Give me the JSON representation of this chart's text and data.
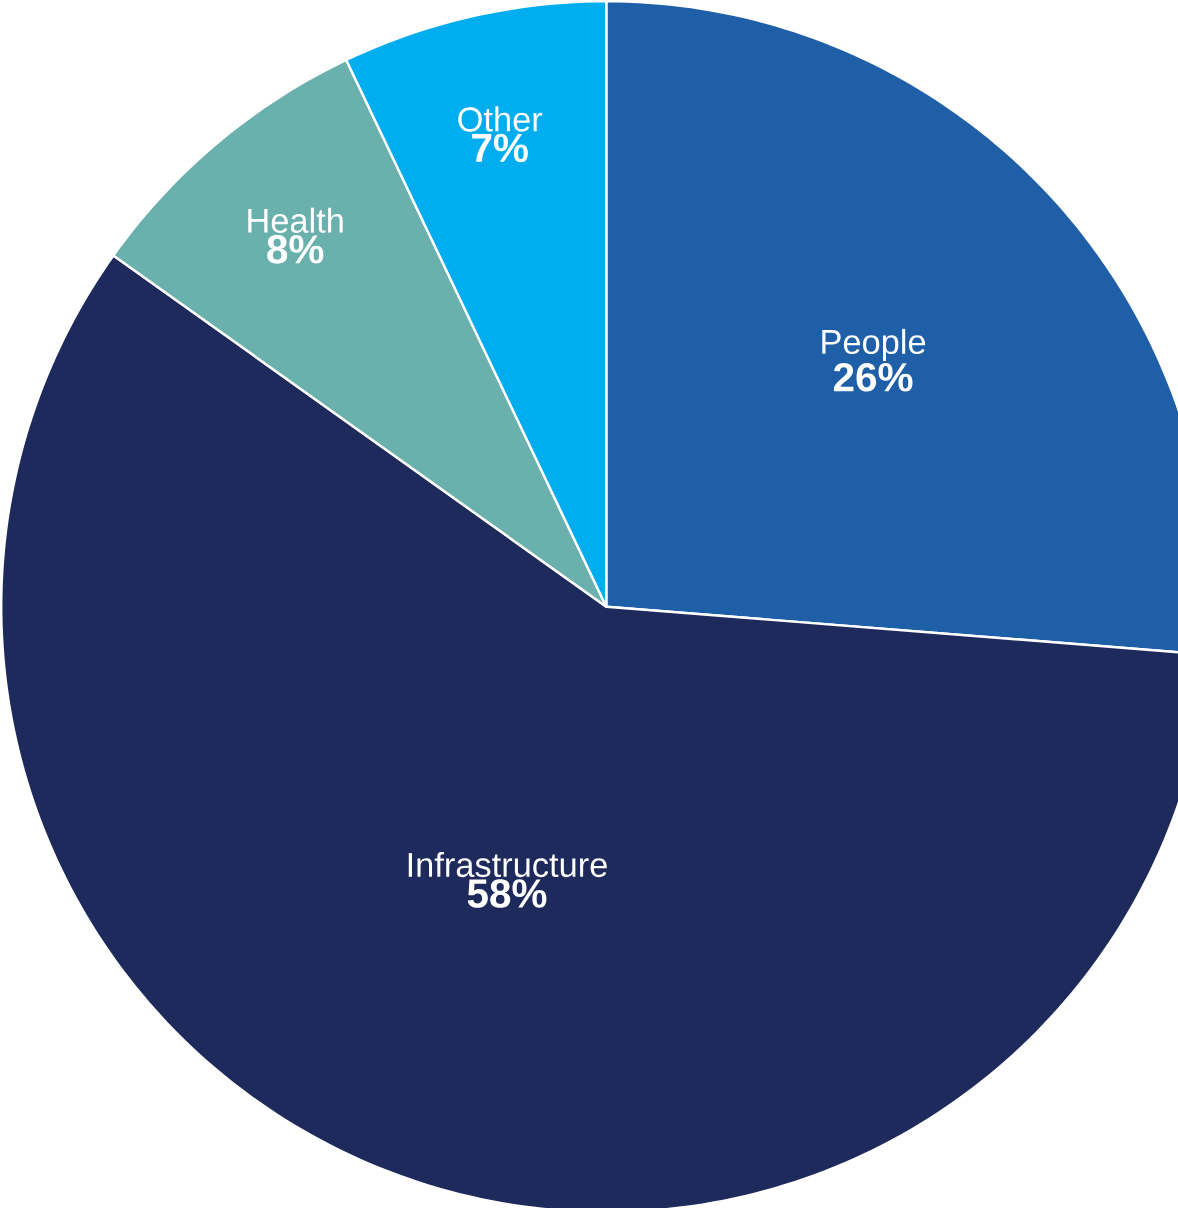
{
  "chart_data": {
    "type": "pie",
    "categories": [
      "People",
      "Infrastructure",
      "Health",
      "Other"
    ],
    "values": [
      26,
      58,
      8,
      7
    ],
    "value_labels": [
      "26%",
      "58%",
      "8%",
      "7%"
    ],
    "colors": [
      "#1f5fa8",
      "#1f2a5c",
      "#6ab0ad",
      "#00adef"
    ]
  }
}
